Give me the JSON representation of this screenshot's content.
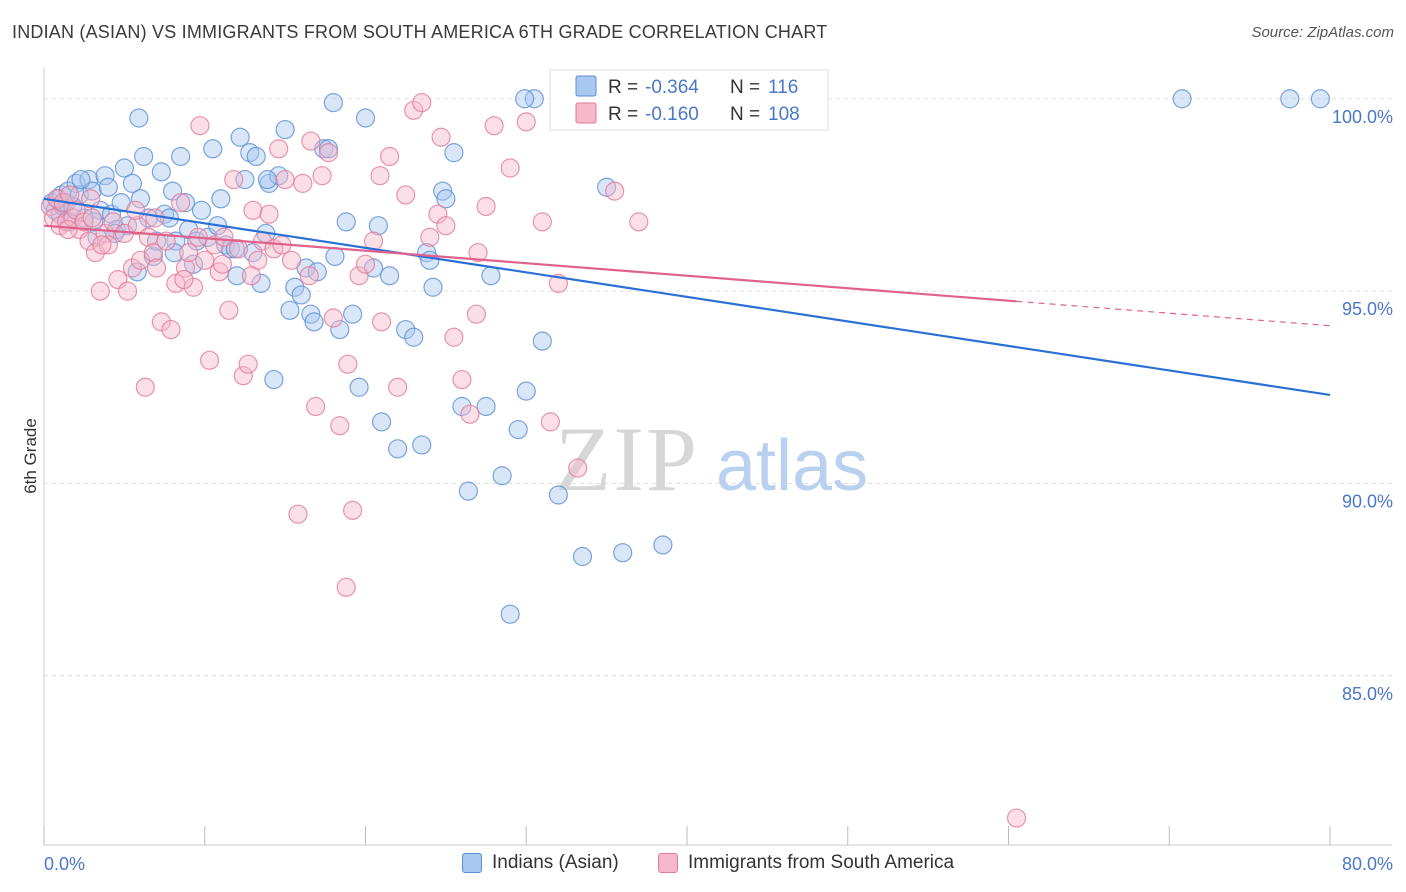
{
  "header": {
    "title": "INDIAN (ASIAN) VS IMMIGRANTS FROM SOUTH AMERICA 6TH GRADE CORRELATION CHART",
    "source": "Source: ZipAtlas.com"
  },
  "watermark": {
    "zip": "ZIP",
    "atlas": "atlas"
  },
  "colors": {
    "blue_fill": "#a9c8f0",
    "blue_stroke": "#5b8fd6",
    "blue_line": "#2a6fd6",
    "pink_fill": "#f6b8ca",
    "pink_stroke": "#e27a9a",
    "pink_line": "#e0628c",
    "axis_text": "#4a78c8",
    "grid": "#dddddd"
  },
  "chart_data": {
    "type": "scatter",
    "title": "INDIAN (ASIAN) VS IMMIGRANTS FROM SOUTH AMERICA 6TH GRADE CORRELATION CHART",
    "xlabel": "",
    "ylabel": "6th Grade",
    "xlim": [
      0,
      80
    ],
    "ylim": [
      80.6,
      100.8
    ],
    "x_tick_labels": [
      "0.0%",
      "80.0%"
    ],
    "y_ticks": [
      {
        "value": 85,
        "label": "85.0%"
      },
      {
        "value": 90,
        "label": "90.0%"
      },
      {
        "value": 95,
        "label": "95.0%"
      },
      {
        "value": 100,
        "label": "100.0%"
      }
    ],
    "legend_top": [
      {
        "series": "Indians (Asian)",
        "r_label": "R =",
        "r_value": "-0.364",
        "n_label": "N =",
        "n_value": "116"
      },
      {
        "series": "Immigrants from South America",
        "r_label": "R =",
        "r_value": "-0.160",
        "n_label": "N =",
        "n_value": "108"
      }
    ],
    "series": [
      {
        "name": "Indians (Asian)",
        "color": "blue",
        "trend": {
          "x0": 0,
          "y0": 97.4,
          "x1": 80,
          "y1": 92.3,
          "solid_until": 80
        },
        "points": [
          [
            0.5,
            97.3
          ],
          [
            0.7,
            97.1
          ],
          [
            0.9,
            97.4
          ],
          [
            1.0,
            97.0
          ],
          [
            1.1,
            97.5
          ],
          [
            1.2,
            97.2
          ],
          [
            1.4,
            97.3
          ],
          [
            1.5,
            97.6
          ],
          [
            1.6,
            96.8
          ],
          [
            1.8,
            97.2
          ],
          [
            2.0,
            97.8
          ],
          [
            2.2,
            97.5
          ],
          [
            2.5,
            96.9
          ],
          [
            2.8,
            97.9
          ],
          [
            3.0,
            97.6
          ],
          [
            3.3,
            96.4
          ],
          [
            3.5,
            97.1
          ],
          [
            3.8,
            98.0
          ],
          [
            4.0,
            97.7
          ],
          [
            4.2,
            97.0
          ],
          [
            4.5,
            96.6
          ],
          [
            4.8,
            97.3
          ],
          [
            5.0,
            98.2
          ],
          [
            5.2,
            96.7
          ],
          [
            5.5,
            97.8
          ],
          [
            5.8,
            95.5
          ],
          [
            6.0,
            97.4
          ],
          [
            6.2,
            98.5
          ],
          [
            6.5,
            96.9
          ],
          [
            6.8,
            95.9
          ],
          [
            7.0,
            96.3
          ],
          [
            7.3,
            98.1
          ],
          [
            7.5,
            97.0
          ],
          [
            7.8,
            96.9
          ],
          [
            8.0,
            97.6
          ],
          [
            8.2,
            96.3
          ],
          [
            8.5,
            98.5
          ],
          [
            8.8,
            97.3
          ],
          [
            9.0,
            96.6
          ],
          [
            9.3,
            95.7
          ],
          [
            9.5,
            96.3
          ],
          [
            9.8,
            97.1
          ],
          [
            10.2,
            96.4
          ],
          [
            10.5,
            98.7
          ],
          [
            10.8,
            96.7
          ],
          [
            11.0,
            97.4
          ],
          [
            11.3,
            96.2
          ],
          [
            11.6,
            96.1
          ],
          [
            12.0,
            95.4
          ],
          [
            12.2,
            99.0
          ],
          [
            12.5,
            97.9
          ],
          [
            12.8,
            98.6
          ],
          [
            13.0,
            96.0
          ],
          [
            13.2,
            98.5
          ],
          [
            13.5,
            95.2
          ],
          [
            13.8,
            96.5
          ],
          [
            14.0,
            97.8
          ],
          [
            14.3,
            92.7
          ],
          [
            14.6,
            98.0
          ],
          [
            15.0,
            99.2
          ],
          [
            15.3,
            94.5
          ],
          [
            15.6,
            95.1
          ],
          [
            16.0,
            94.9
          ],
          [
            16.3,
            95.6
          ],
          [
            16.6,
            94.4
          ],
          [
            16.8,
            94.2
          ],
          [
            17.0,
            95.5
          ],
          [
            17.4,
            98.7
          ],
          [
            17.7,
            98.7
          ],
          [
            18.0,
            99.9
          ],
          [
            18.4,
            94.0
          ],
          [
            18.8,
            96.8
          ],
          [
            19.2,
            94.4
          ],
          [
            19.6,
            92.5
          ],
          [
            20.0,
            99.5
          ],
          [
            20.5,
            95.6
          ],
          [
            21.0,
            91.6
          ],
          [
            21.5,
            95.4
          ],
          [
            22.0,
            90.9
          ],
          [
            22.5,
            94.0
          ],
          [
            23.0,
            93.8
          ],
          [
            23.5,
            91.0
          ],
          [
            23.8,
            96.0
          ],
          [
            24.0,
            95.8
          ],
          [
            24.2,
            95.1
          ],
          [
            24.8,
            97.6
          ],
          [
            25.0,
            97.4
          ],
          [
            26.0,
            92.0
          ],
          [
            26.4,
            89.8
          ],
          [
            27.5,
            92.0
          ],
          [
            28.5,
            90.2
          ],
          [
            29.0,
            86.6
          ],
          [
            29.5,
            91.4
          ],
          [
            30.0,
            92.4
          ],
          [
            31.0,
            93.7
          ],
          [
            32.0,
            89.7
          ],
          [
            33.5,
            88.1
          ],
          [
            35.0,
            97.7
          ],
          [
            36.0,
            88.2
          ],
          [
            38.5,
            88.4
          ],
          [
            8.1,
            96.0
          ],
          [
            4.4,
            96.5
          ],
          [
            2.3,
            97.9
          ],
          [
            5.9,
            99.5
          ],
          [
            11.9,
            96.1
          ],
          [
            18.1,
            95.9
          ],
          [
            20.8,
            96.7
          ],
          [
            27.8,
            95.4
          ],
          [
            3.1,
            96.8
          ],
          [
            13.9,
            97.9
          ],
          [
            70.8,
            100.0
          ],
          [
            77.5,
            100.0
          ],
          [
            79.4,
            100.0
          ],
          [
            25.5,
            98.6
          ],
          [
            30.5,
            100.0
          ],
          [
            29.9,
            100.0
          ]
        ]
      },
      {
        "name": "Immigrants from South America",
        "color": "pink",
        "trend": {
          "x0": 0,
          "y0": 96.7,
          "x1": 80,
          "y1": 94.1,
          "solid_until": 60.5
        },
        "points": [
          [
            0.4,
            97.2
          ],
          [
            0.6,
            96.9
          ],
          [
            0.8,
            97.4
          ],
          [
            1.0,
            96.7
          ],
          [
            1.2,
            97.3
          ],
          [
            1.4,
            96.8
          ],
          [
            1.6,
            97.5
          ],
          [
            1.8,
            96.9
          ],
          [
            2.0,
            97.1
          ],
          [
            2.2,
            96.6
          ],
          [
            2.5,
            96.8
          ],
          [
            2.8,
            96.3
          ],
          [
            3.0,
            96.9
          ],
          [
            3.2,
            96.0
          ],
          [
            3.5,
            95.0
          ],
          [
            3.8,
            96.5
          ],
          [
            4.0,
            96.2
          ],
          [
            4.3,
            96.8
          ],
          [
            4.6,
            95.3
          ],
          [
            5.0,
            96.5
          ],
          [
            5.2,
            95.0
          ],
          [
            5.5,
            95.6
          ],
          [
            5.8,
            96.7
          ],
          [
            6.0,
            95.8
          ],
          [
            6.3,
            92.5
          ],
          [
            6.5,
            96.4
          ],
          [
            6.8,
            96.0
          ],
          [
            7.0,
            95.6
          ],
          [
            7.3,
            94.2
          ],
          [
            7.6,
            96.3
          ],
          [
            7.9,
            94.0
          ],
          [
            8.2,
            95.2
          ],
          [
            8.5,
            97.3
          ],
          [
            8.8,
            95.6
          ],
          [
            9.0,
            96.0
          ],
          [
            9.3,
            95.1
          ],
          [
            9.6,
            96.4
          ],
          [
            10.0,
            95.8
          ],
          [
            10.3,
            93.2
          ],
          [
            10.6,
            96.2
          ],
          [
            10.9,
            95.5
          ],
          [
            11.2,
            96.4
          ],
          [
            11.5,
            94.5
          ],
          [
            11.8,
            97.9
          ],
          [
            12.1,
            96.1
          ],
          [
            12.4,
            92.8
          ],
          [
            12.7,
            93.1
          ],
          [
            13.0,
            97.1
          ],
          [
            13.3,
            95.8
          ],
          [
            13.6,
            96.3
          ],
          [
            14.0,
            97.0
          ],
          [
            14.3,
            96.1
          ],
          [
            14.6,
            98.7
          ],
          [
            15.0,
            97.9
          ],
          [
            15.4,
            95.8
          ],
          [
            15.8,
            89.2
          ],
          [
            16.1,
            97.8
          ],
          [
            16.5,
            95.4
          ],
          [
            16.9,
            92.0
          ],
          [
            17.3,
            98.0
          ],
          [
            17.7,
            98.6
          ],
          [
            18.0,
            94.3
          ],
          [
            18.4,
            91.5
          ],
          [
            18.8,
            87.3
          ],
          [
            19.2,
            89.3
          ],
          [
            19.6,
            95.4
          ],
          [
            20.0,
            95.7
          ],
          [
            20.5,
            96.3
          ],
          [
            21.0,
            94.2
          ],
          [
            21.5,
            98.5
          ],
          [
            22.0,
            92.5
          ],
          [
            22.5,
            97.5
          ],
          [
            23.0,
            99.7
          ],
          [
            23.5,
            99.9
          ],
          [
            24.0,
            96.4
          ],
          [
            24.5,
            97.0
          ],
          [
            25.0,
            96.7
          ],
          [
            25.5,
            93.8
          ],
          [
            26.0,
            92.7
          ],
          [
            26.5,
            91.8
          ],
          [
            27.0,
            96.0
          ],
          [
            27.5,
            97.2
          ],
          [
            28.0,
            99.3
          ],
          [
            29.0,
            98.2
          ],
          [
            30.0,
            99.4
          ],
          [
            31.0,
            96.8
          ],
          [
            32.0,
            95.2
          ],
          [
            34.0,
            99.8
          ],
          [
            35.5,
            97.6
          ],
          [
            37.0,
            96.8
          ],
          [
            60.5,
            81.3
          ],
          [
            9.7,
            99.3
          ],
          [
            3.6,
            96.2
          ],
          [
            5.7,
            97.1
          ],
          [
            2.9,
            97.4
          ],
          [
            6.9,
            96.9
          ],
          [
            11.1,
            95.7
          ],
          [
            14.8,
            96.2
          ],
          [
            1.5,
            96.6
          ],
          [
            8.7,
            95.3
          ],
          [
            12.9,
            95.4
          ],
          [
            16.6,
            98.9
          ],
          [
            20.9,
            98.0
          ],
          [
            26.9,
            94.4
          ],
          [
            31.5,
            91.6
          ],
          [
            33.2,
            90.4
          ],
          [
            24.7,
            99.0
          ],
          [
            18.9,
            93.1
          ]
        ]
      }
    ]
  },
  "bottom_legend": [
    {
      "label": "Indians (Asian)"
    },
    {
      "label": "Immigrants from South America"
    }
  ]
}
